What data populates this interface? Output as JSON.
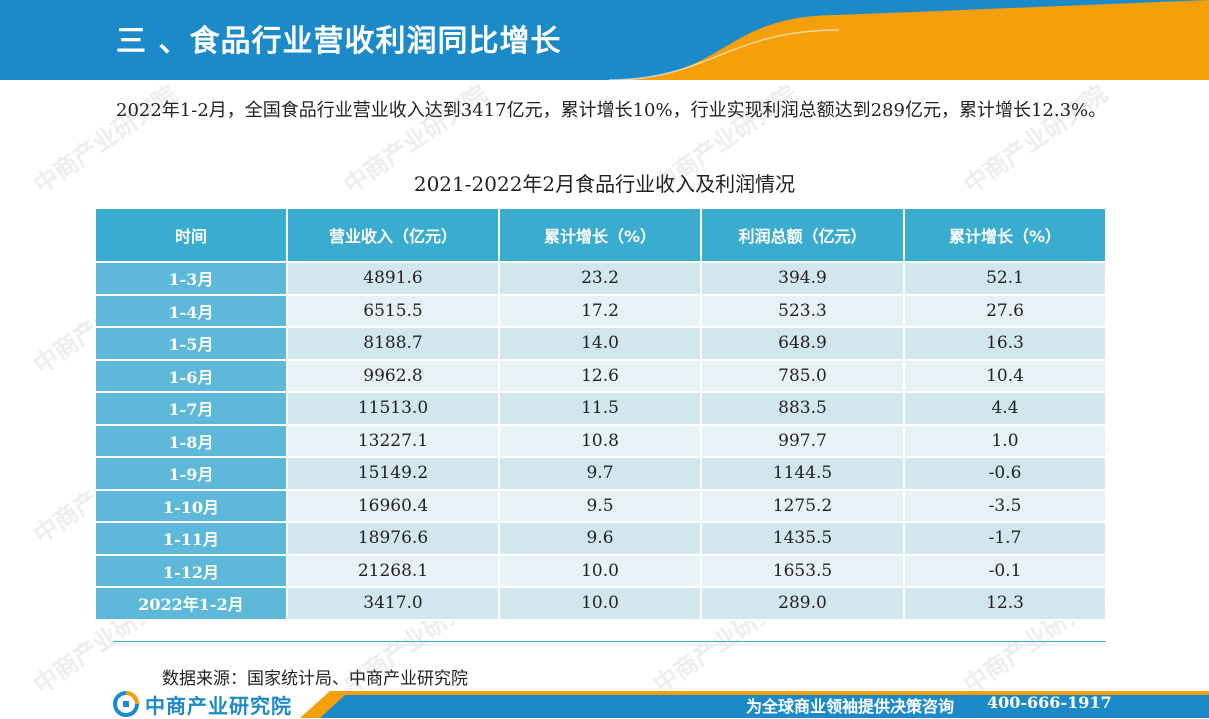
{
  "header": {
    "title": "三 、食品行业营收利润同比增长",
    "colors": {
      "primary": "#1c8ac8",
      "accent": "#f5a00a"
    }
  },
  "intro": "2022年1-2月，全国食品行业营业收入达到3417亿元，累计增长10%，行业实现利润总额达到289亿元，累计增长12.3%。",
  "table": {
    "title": "2021-2022年2月食品行业收入及利润情况",
    "headers": [
      "时间",
      "营业收入（亿元）",
      "累计增长（%）",
      "利润总额（亿元）",
      "累计增长（%）"
    ],
    "rows": [
      [
        "1-3月",
        "4891.6",
        "23.2",
        "394.9",
        "52.1"
      ],
      [
        "1-4月",
        "6515.5",
        "17.2",
        "523.3",
        "27.6"
      ],
      [
        "1-5月",
        "8188.7",
        "14.0",
        "648.9",
        "16.3"
      ],
      [
        "1-6月",
        "9962.8",
        "12.6",
        "785.0",
        "10.4"
      ],
      [
        "1-7月",
        "11513.0",
        "11.5",
        "883.5",
        "4.4"
      ],
      [
        "1-8月",
        "13227.1",
        "10.8",
        "997.7",
        "1.0"
      ],
      [
        "1-9月",
        "15149.2",
        "9.7",
        "1144.5",
        "-0.6"
      ],
      [
        "1-10月",
        "16960.4",
        "9.5",
        "1275.2",
        "-3.5"
      ],
      [
        "1-11月",
        "18976.6",
        "9.6",
        "1435.5",
        "-1.7"
      ],
      [
        "1-12月",
        "21268.1",
        "10.0",
        "1653.5",
        "-0.1"
      ],
      [
        "2022年1-2月",
        "3417.0",
        "10.0",
        "289.0",
        "12.3"
      ]
    ]
  },
  "source": "数据来源：国家统计局、中商产业研究院",
  "footer": {
    "logo_text": "中商产业研究院",
    "slogan": "为全球商业领袖提供决策咨询",
    "phone": "400-666-1917"
  },
  "watermark": {
    "text": "中商产业研究院"
  }
}
